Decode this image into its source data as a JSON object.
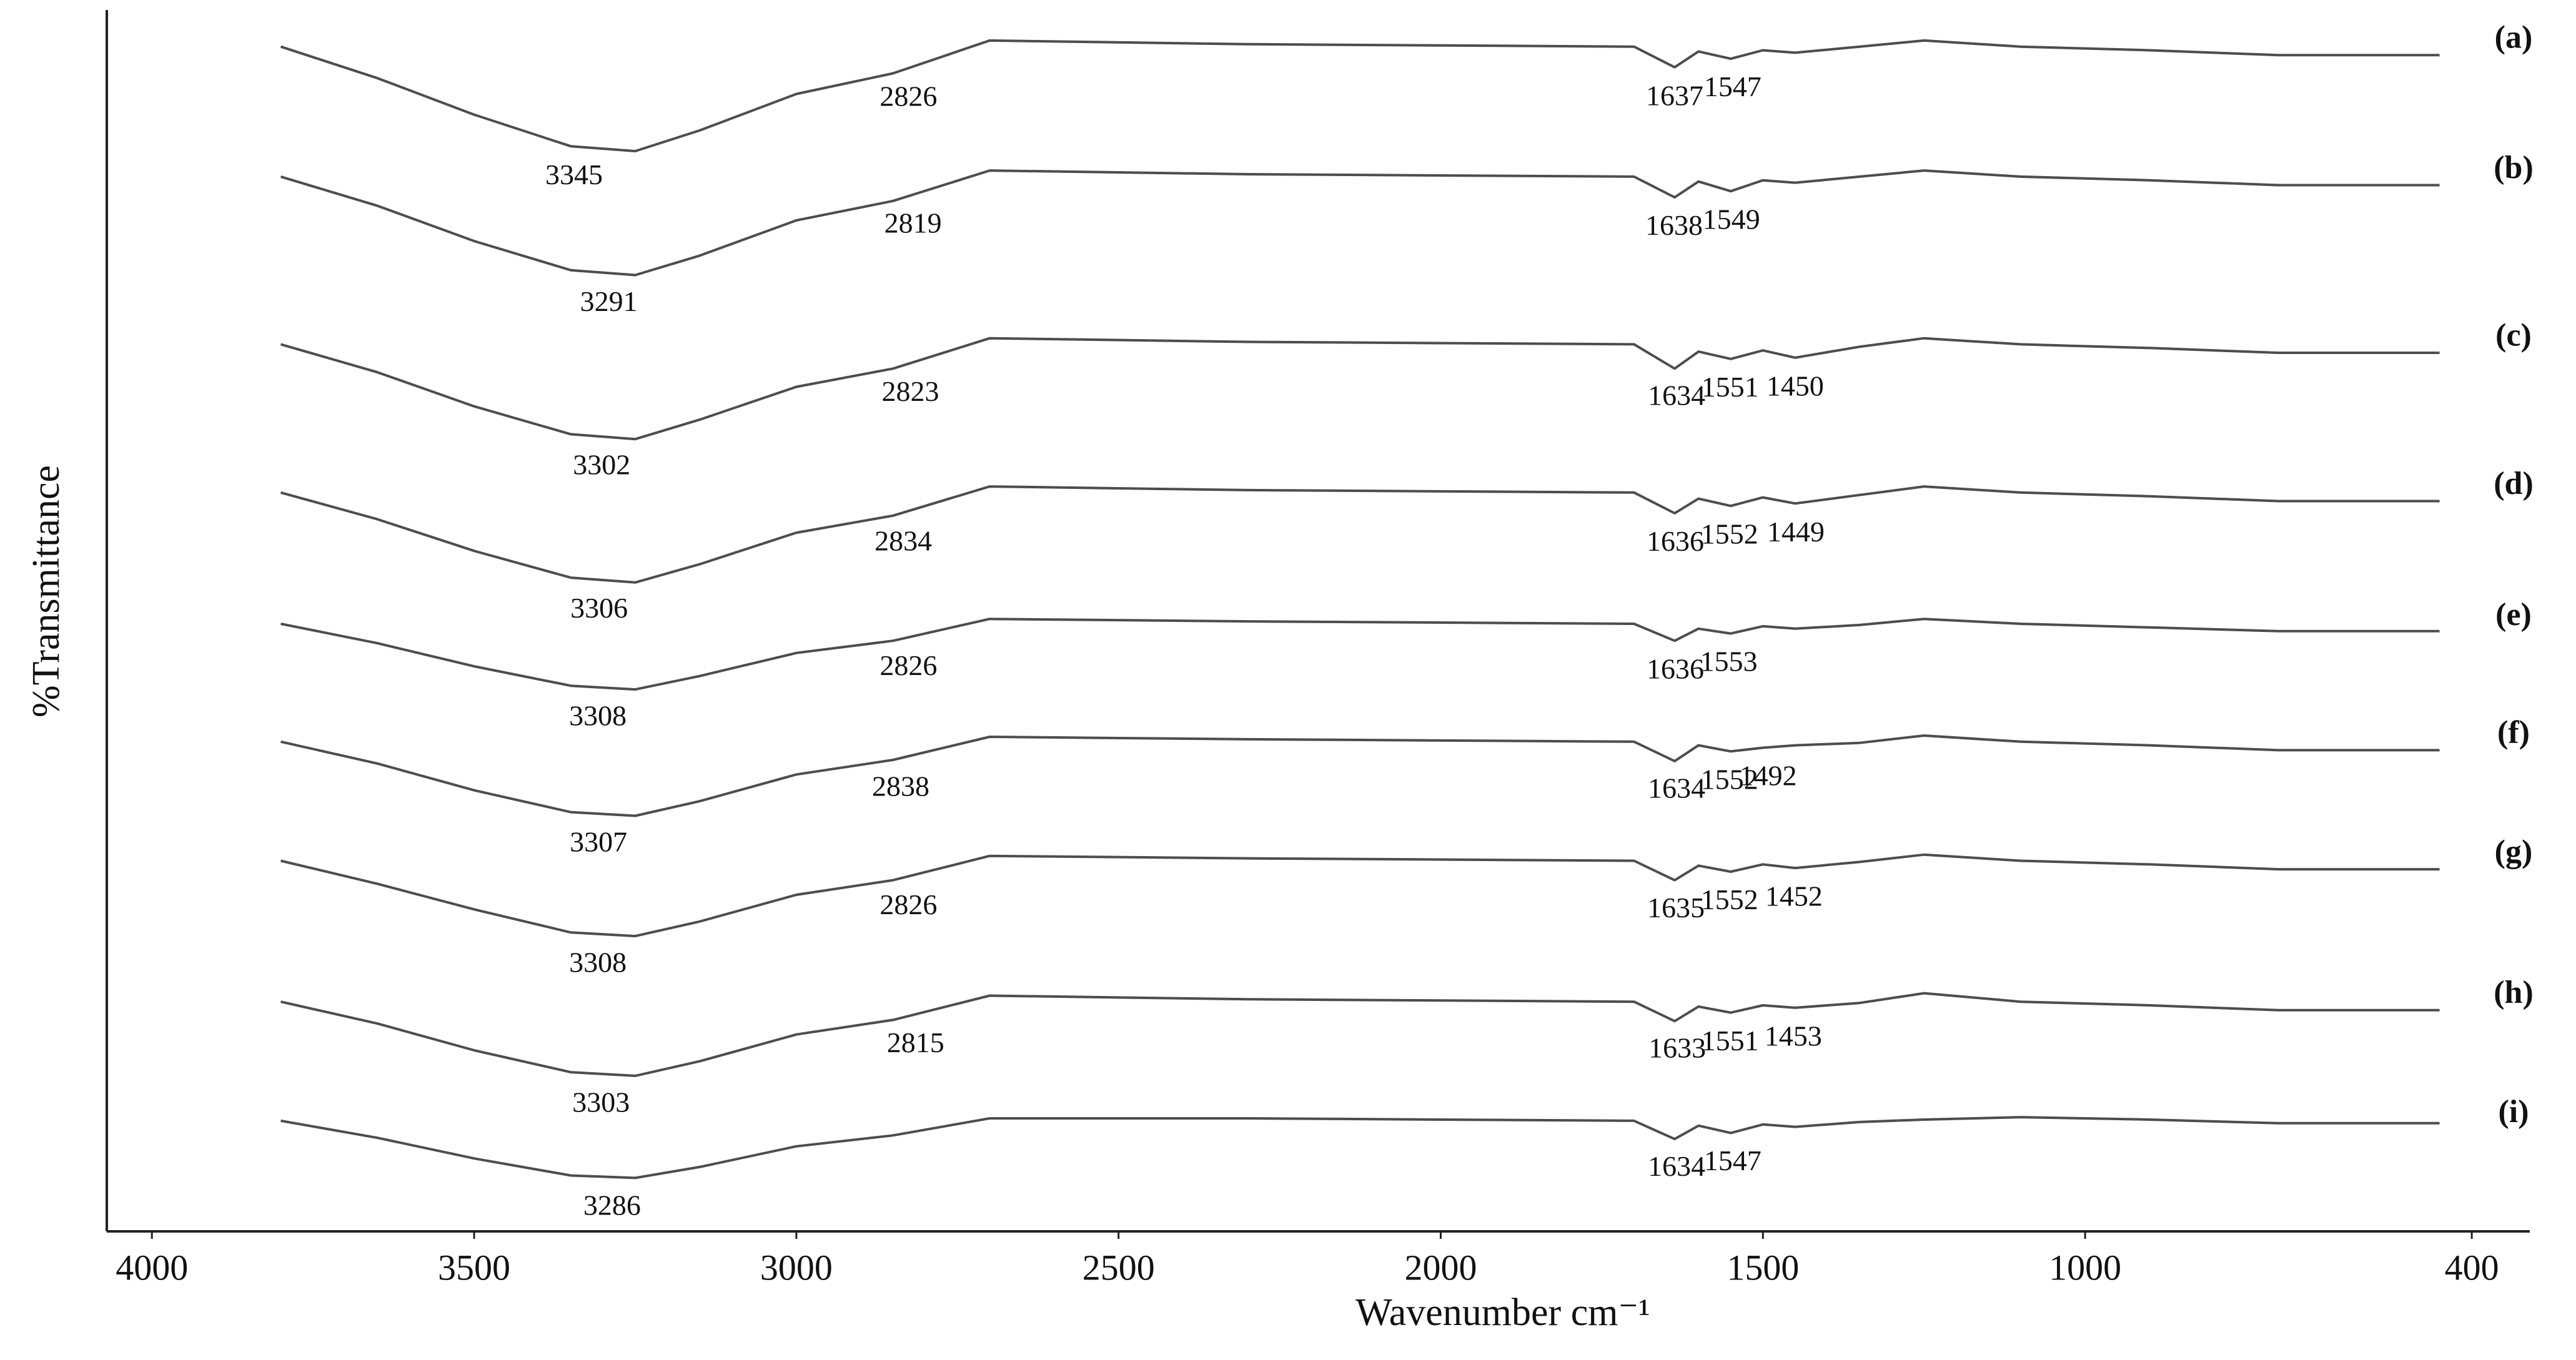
{
  "chart_data": {
    "type": "line",
    "xlabel": "Wavenumber cm⁻¹",
    "ylabel": "%Transmittance",
    "xlim": [
      4070,
      310
    ],
    "xticks": [
      4000,
      3500,
      3000,
      2500,
      2000,
      1500,
      1000,
      400
    ],
    "ylim": [
      0,
      100
    ],
    "x": [
      3800,
      3650,
      3500,
      3350,
      3250,
      3150,
      3000,
      2850,
      2700,
      2300,
      1700,
      1637,
      1600,
      1550,
      1500,
      1450,
      1350,
      1250,
      1100,
      900,
      700,
      450
    ],
    "series": [
      {
        "name": "(a)",
        "color": "#4d4d4d",
        "peaks": [
          3345,
          2826,
          1637,
          1547
        ],
        "values": [
          97.5,
          94.9,
          91.9,
          89.3,
          88.9,
          90.6,
          93.6,
          95.3,
          98.0,
          97.7,
          97.5,
          95.8,
          97.1,
          96.5,
          97.2,
          97.0,
          97.5,
          98.0,
          97.5,
          97.2,
          96.8,
          96.8
        ]
      },
      {
        "name": "(b)",
        "color": "#4d4d4d",
        "peaks": [
          3291,
          2819,
          1638,
          1549
        ],
        "values": [
          86.8,
          84.4,
          81.5,
          79.1,
          78.7,
          80.3,
          83.2,
          84.8,
          87.3,
          87.0,
          86.8,
          85.1,
          86.4,
          85.6,
          86.5,
          86.3,
          86.8,
          87.3,
          86.8,
          86.5,
          86.1,
          86.1
        ]
      },
      {
        "name": "(c)",
        "color": "#4d4d4d",
        "peaks": [
          3302,
          2823,
          1634,
          1551,
          1450
        ],
        "values": [
          73.0,
          70.7,
          67.9,
          65.6,
          65.2,
          66.8,
          69.5,
          71.0,
          73.5,
          73.2,
          73.0,
          71.0,
          72.4,
          71.8,
          72.5,
          71.9,
          72.8,
          73.5,
          73.0,
          72.7,
          72.3,
          72.3
        ]
      },
      {
        "name": "(d)",
        "color": "#4d4d4d",
        "peaks": [
          3306,
          2834,
          1636,
          1552,
          1449
        ],
        "values": [
          60.8,
          58.6,
          56.0,
          53.8,
          53.4,
          54.9,
          57.5,
          58.9,
          61.3,
          61.0,
          60.8,
          59.1,
          60.3,
          59.7,
          60.4,
          59.9,
          60.6,
          61.3,
          60.8,
          60.5,
          60.1,
          60.1
        ]
      },
      {
        "name": "(e)",
        "color": "#4d4d4d",
        "peaks": [
          3308,
          2826,
          1636,
          1553
        ],
        "values": [
          50.0,
          48.4,
          46.5,
          44.9,
          44.6,
          45.7,
          47.6,
          48.6,
          50.4,
          50.2,
          50.0,
          48.6,
          49.6,
          49.2,
          49.8,
          49.6,
          49.9,
          50.4,
          50.0,
          49.7,
          49.4,
          49.4
        ]
      },
      {
        "name": "(f)",
        "color": "#4d4d4d",
        "peaks": [
          3307,
          2838,
          1634,
          1552,
          1492
        ],
        "values": [
          40.3,
          38.5,
          36.3,
          34.5,
          34.2,
          35.4,
          37.6,
          38.8,
          40.7,
          40.5,
          40.3,
          38.7,
          40.0,
          39.5,
          39.8,
          40.0,
          40.2,
          40.8,
          40.3,
          40.0,
          39.6,
          39.6
        ]
      },
      {
        "name": "(g)",
        "color": "#4d4d4d",
        "peaks": [
          3308,
          2826,
          1635,
          1552,
          1452
        ],
        "values": [
          30.5,
          28.6,
          26.5,
          24.6,
          24.3,
          25.5,
          27.7,
          28.9,
          30.9,
          30.7,
          30.5,
          28.9,
          30.1,
          29.6,
          30.2,
          29.9,
          30.4,
          31.0,
          30.5,
          30.2,
          29.8,
          29.8
        ]
      },
      {
        "name": "(h)",
        "color": "#4d4d4d",
        "peaks": [
          3303,
          2815,
          1633,
          1551,
          1453
        ],
        "values": [
          18.9,
          17.1,
          14.9,
          13.1,
          12.8,
          14.0,
          16.2,
          17.4,
          19.4,
          19.1,
          18.9,
          17.3,
          18.5,
          18.0,
          18.6,
          18.4,
          18.8,
          19.6,
          18.9,
          18.6,
          18.2,
          18.2
        ]
      },
      {
        "name": "(i)",
        "color": "#4d4d4d",
        "peaks": [
          3286,
          1634,
          1547
        ],
        "values": [
          9.1,
          7.7,
          6.0,
          4.6,
          4.4,
          5.3,
          7.0,
          7.9,
          9.3,
          9.3,
          9.1,
          7.6,
          8.7,
          8.1,
          8.8,
          8.6,
          9.0,
          9.2,
          9.4,
          9.2,
          8.9,
          8.9
        ]
      }
    ]
  }
}
